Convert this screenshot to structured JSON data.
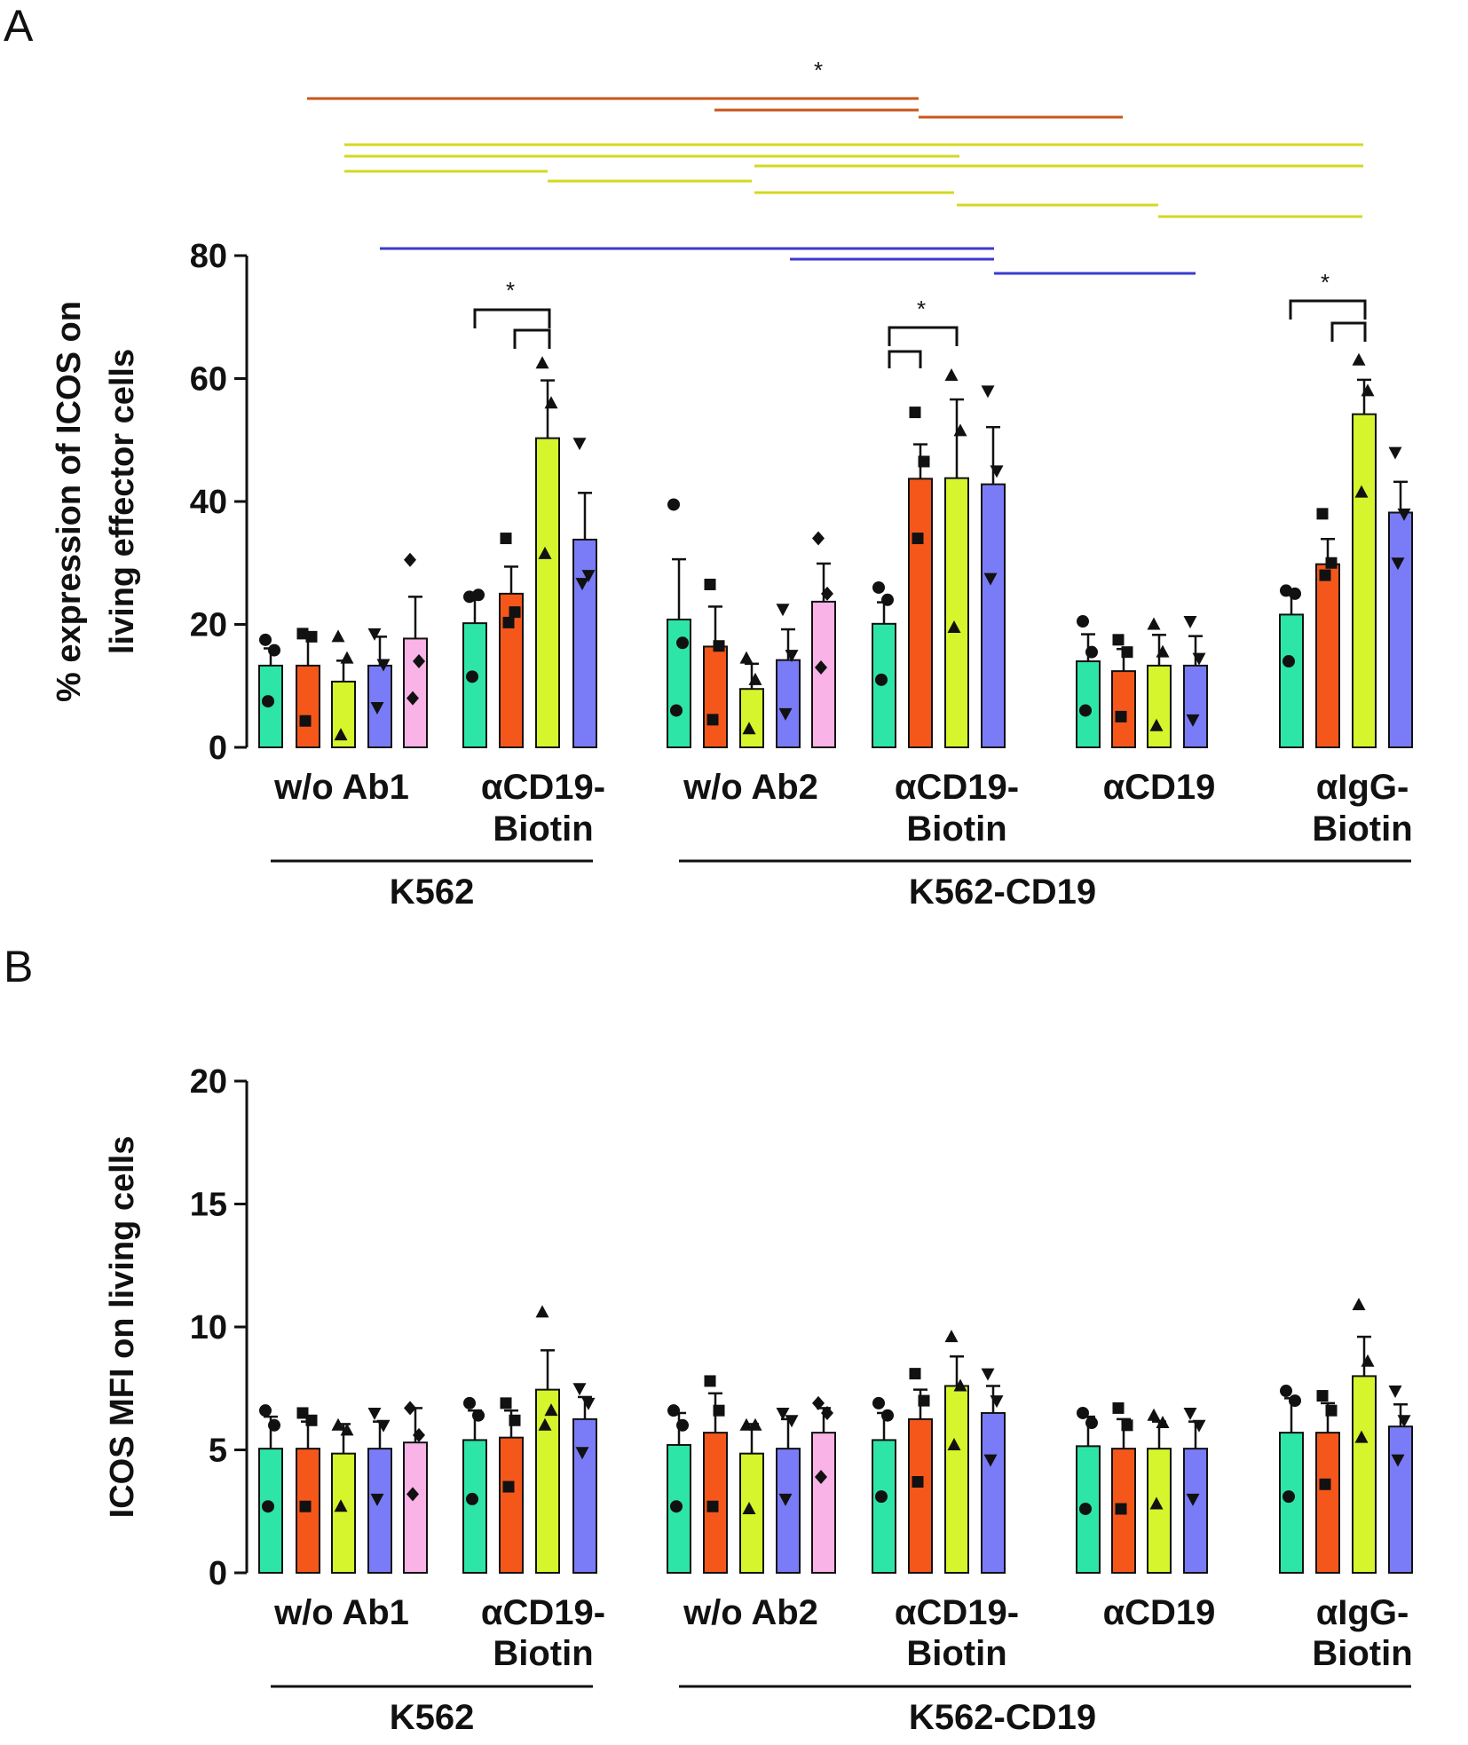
{
  "chart_data": [
    {
      "panel": "A",
      "type": "bar",
      "ylabel_lines": [
        "% expression of ICOS on",
        "living effector cells"
      ],
      "ylim": [
        0,
        80
      ],
      "yticks": [
        0,
        20,
        40,
        60,
        80
      ],
      "groups": [
        {
          "label_lines": [
            "w/o Ab1"
          ],
          "values": [
            13.3,
            13.3,
            10.7,
            13.3,
            17.7
          ],
          "errors": [
            2.8,
            4.5,
            3.4,
            4.7,
            6.8
          ],
          "points": [
            [
              17.5,
              15.8,
              7.5
            ],
            [
              18.5,
              18.0,
              4.3
            ],
            [
              18.0,
              14.5,
              2.0
            ],
            [
              18.5,
              13.5,
              6.5
            ],
            [
              30.5,
              14.0,
              8.0
            ]
          ]
        },
        {
          "label_lines": [
            "αCD19-",
            "Biotin"
          ],
          "values": [
            20.2,
            25.0,
            50.3,
            33.8
          ],
          "errors": [
            4.6,
            4.4,
            9.4,
            7.6
          ],
          "points": [
            [
              24.5,
              24.8,
              11.5
            ],
            [
              34.0,
              22.0,
              20.3
            ],
            [
              62.5,
              56.0,
              31.5
            ],
            [
              49.5,
              28.0,
              26.7
            ]
          ]
        },
        {
          "label_lines": [
            "w/o Ab2"
          ],
          "values": [
            20.8,
            16.4,
            9.5,
            14.2,
            23.7
          ],
          "errors": [
            9.8,
            6.5,
            4.1,
            5.0,
            6.2
          ],
          "points": [
            [
              39.5,
              17.0,
              6.0
            ],
            [
              26.5,
              16.5,
              4.5
            ],
            [
              14.5,
              11.0,
              3.0
            ],
            [
              22.5,
              15.0,
              5.5
            ],
            [
              34.0,
              25.0,
              13.0
            ]
          ]
        },
        {
          "label_lines": [
            "αCD19-",
            "Biotin"
          ],
          "values": [
            20.1,
            43.7,
            43.8,
            42.8
          ],
          "errors": [
            3.5,
            5.6,
            12.8,
            9.3
          ],
          "points": [
            [
              26.0,
              24.0,
              11.0
            ],
            [
              54.5,
              46.5,
              34.0
            ],
            [
              60.5,
              51.5,
              19.5
            ],
            [
              58.0,
              45.0,
              27.5
            ]
          ]
        },
        {
          "label_lines": [
            "αCD19"
          ],
          "values": [
            14.0,
            12.4,
            13.3,
            13.3
          ],
          "errors": [
            4.4,
            3.6,
            5.0,
            4.8
          ],
          "points": [
            [
              20.5,
              15.5,
              6.0
            ],
            [
              17.5,
              15.5,
              5.0
            ],
            [
              20.0,
              15.5,
              3.5
            ],
            [
              20.5,
              14.5,
              4.5
            ]
          ]
        },
        {
          "label_lines": [
            "αIgG-",
            "Biotin"
          ],
          "values": [
            21.6,
            29.8,
            54.2,
            38.2
          ],
          "errors": [
            3.5,
            4.1,
            5.6,
            5.0
          ],
          "points": [
            [
              25.5,
              25.0,
              14.0
            ],
            [
              38.0,
              30.0,
              28.0
            ],
            [
              63.0,
              58.0,
              41.5
            ],
            [
              48.0,
              38.0,
              30.0
            ]
          ]
        }
      ],
      "cell_lines": [
        {
          "label": "K562",
          "groups": [
            0,
            1
          ]
        },
        {
          "label": "K562-CD19",
          "groups": [
            2,
            3,
            4,
            5
          ]
        }
      ],
      "annotations": [
        "*",
        "*",
        "*",
        "*"
      ]
    },
    {
      "panel": "B",
      "type": "bar",
      "ylabel_lines": [
        "ICOS MFI on living cells"
      ],
      "ylim": [
        0,
        20
      ],
      "yticks": [
        0,
        5,
        10,
        15,
        20
      ],
      "groups": [
        {
          "label_lines": [
            "w/o Ab1"
          ],
          "values": [
            5.05,
            5.05,
            4.85,
            5.05,
            5.3
          ],
          "errors": [
            1.3,
            1.1,
            1.2,
            1.1,
            1.4
          ],
          "points": [
            [
              6.6,
              6.0,
              2.7
            ],
            [
              6.5,
              6.2,
              2.7
            ],
            [
              6.0,
              5.8,
              2.7
            ],
            [
              6.5,
              6.0,
              3.0
            ],
            [
              6.7,
              5.6,
              3.2
            ]
          ]
        },
        {
          "label_lines": [
            "αCD19-",
            "Biotin"
          ],
          "values": [
            5.4,
            5.5,
            7.45,
            6.25
          ],
          "errors": [
            1.2,
            1.1,
            1.6,
            0.9
          ],
          "points": [
            [
              6.9,
              6.4,
              3.0
            ],
            [
              6.9,
              6.2,
              3.5
            ],
            [
              10.6,
              6.6,
              6.0
            ],
            [
              7.5,
              6.9,
              4.9
            ]
          ]
        },
        {
          "label_lines": [
            "w/o Ab2"
          ],
          "values": [
            5.2,
            5.7,
            4.85,
            5.05,
            5.7
          ],
          "errors": [
            1.3,
            1.6,
            1.2,
            1.2,
            1.0
          ],
          "points": [
            [
              6.6,
              6.0,
              2.7
            ],
            [
              7.8,
              6.6,
              2.7
            ],
            [
              6.0,
              6.0,
              2.6
            ],
            [
              6.5,
              6.2,
              3.0
            ],
            [
              6.9,
              6.5,
              3.9
            ]
          ]
        },
        {
          "label_lines": [
            "αCD19-",
            "Biotin"
          ],
          "values": [
            5.4,
            6.25,
            7.6,
            6.5
          ],
          "errors": [
            1.1,
            1.2,
            1.2,
            1.1
          ],
          "points": [
            [
              6.9,
              6.4,
              3.1
            ],
            [
              8.1,
              7.0,
              3.7
            ],
            [
              9.6,
              7.6,
              5.2
            ],
            [
              8.1,
              7.0,
              4.6
            ]
          ]
        },
        {
          "label_lines": [
            "αCD19"
          ],
          "values": [
            5.15,
            5.05,
            5.05,
            5.05
          ],
          "errors": [
            1.2,
            1.2,
            1.1,
            1.1
          ],
          "points": [
            [
              6.5,
              6.1,
              2.6
            ],
            [
              6.7,
              6.0,
              2.6
            ],
            [
              6.4,
              6.1,
              2.8
            ],
            [
              6.5,
              6.0,
              3.0
            ]
          ]
        },
        {
          "label_lines": [
            "αIgG-",
            "Biotin"
          ],
          "values": [
            5.7,
            5.7,
            8.0,
            5.95
          ],
          "errors": [
            1.4,
            1.2,
            1.6,
            0.9
          ],
          "points": [
            [
              7.4,
              7.0,
              3.1
            ],
            [
              7.2,
              6.6,
              3.6
            ],
            [
              10.9,
              8.6,
              5.5
            ],
            [
              7.4,
              6.2,
              4.6
            ]
          ]
        }
      ],
      "cell_lines": [
        {
          "label": "K562",
          "groups": [
            0,
            1
          ]
        },
        {
          "label": "K562-CD19",
          "groups": [
            2,
            3,
            4,
            5
          ]
        }
      ],
      "annotations": []
    }
  ],
  "panel_labels": [
    "A",
    "B"
  ],
  "colors": {
    "series": [
      "#2ee5a8",
      "#f5571b",
      "#d6f52c",
      "#7a7cf7",
      "#f9b3e6"
    ],
    "sig_orange": "#c8561a",
    "sig_yellow": "#d4d820",
    "sig_blue": "#3a3ad0",
    "ink": "#111111"
  },
  "markers": [
    "circle",
    "square",
    "triangle-up",
    "triangle-down",
    "diamond"
  ]
}
